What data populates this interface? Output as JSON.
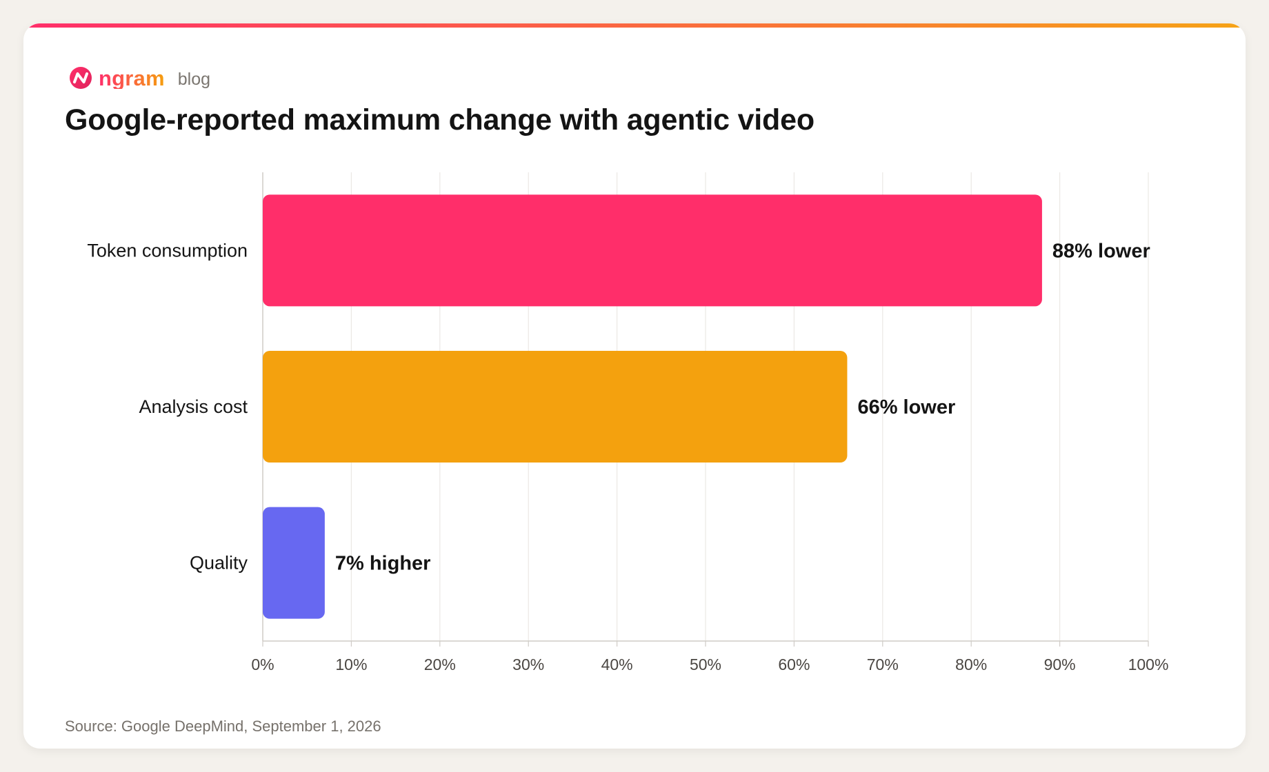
{
  "brand": {
    "name": "ngram",
    "section": "blog",
    "colors": {
      "pink": "#ff2e6a",
      "orange": "#f59f0e"
    }
  },
  "title": "Google-reported maximum change with agentic video",
  "source": "Source: Google DeepMind, September 1, 2026",
  "chart_data": {
    "type": "bar",
    "orientation": "horizontal",
    "title": "Google-reported maximum change with agentic video",
    "categories": [
      "Token consumption",
      "Analysis cost",
      "Quality"
    ],
    "values": [
      88,
      66,
      7
    ],
    "value_labels": [
      "88% lower",
      "66% lower",
      "7% higher"
    ],
    "colors": [
      "#ff2e6a",
      "#f4a10e",
      "#6768f1"
    ],
    "xlim": [
      0,
      100
    ],
    "x_ticks": [
      0,
      10,
      20,
      30,
      40,
      50,
      60,
      70,
      80,
      90,
      100
    ],
    "x_tick_labels": [
      "0%",
      "10%",
      "20%",
      "30%",
      "40%",
      "50%",
      "60%",
      "70%",
      "80%",
      "90%",
      "100%"
    ],
    "xlabel": "",
    "ylabel": "",
    "grid": true,
    "legend": "none"
  }
}
